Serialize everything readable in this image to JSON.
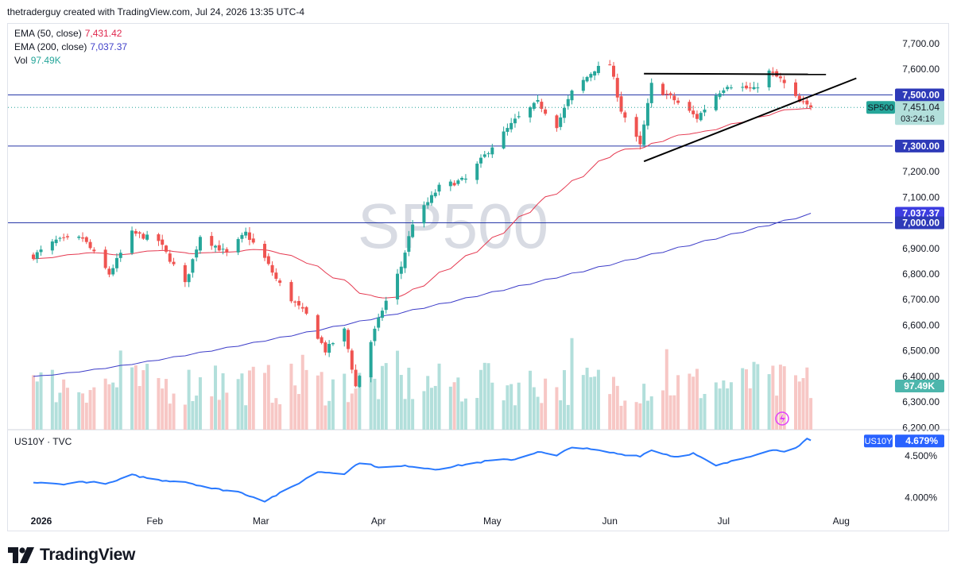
{
  "header": {
    "attribution": "thetraderguy created with TradingView.com, Jul 24, 2026 13:35 UTC-4"
  },
  "legend": [
    {
      "label": "EMA (50, close)",
      "value": "7,431.42",
      "color": "#d81b60"
    },
    {
      "label": "EMA (200, close)",
      "value": "7,037.37",
      "color": "#3f3fc9"
    },
    {
      "label": "Vol",
      "value": "97.49K",
      "color": "#26a69a"
    }
  ],
  "watermark": "SP500",
  "pane2_label": "US10Y · TVC",
  "brand": "TradingView",
  "colors": {
    "up": "#26a69a",
    "down": "#ef5350",
    "ema50": "#e53950",
    "ema200": "#3c3cc8",
    "hline": "#2738a8",
    "us10y": "#2979ff"
  },
  "chart_data": [
    {
      "type": "candlestick",
      "symbol": "SP500",
      "period": "daily",
      "ylim": [
        6170,
        7760
      ],
      "yticks": [
        "7,700.00",
        "7,600.00",
        "7,500.00",
        "7,400.00",
        "7,300.00",
        "7,200.00",
        "7,100.00",
        "7,000.00",
        "6,900.00",
        "6,800.00",
        "6,700.00",
        "6,600.00",
        "6,500.00",
        "6,400.00",
        "6,300.00",
        "6,200.00"
      ],
      "xticks": [
        "2026",
        "Feb",
        "Mar",
        "Apr",
        "May",
        "Jun",
        "Jul",
        "Aug"
      ],
      "anchors": [
        [
          "2025-12-31",
          6870
        ],
        [
          "2026-01-06",
          6930
        ],
        [
          "2026-01-13",
          6940
        ],
        [
          "2026-01-20",
          6800
        ],
        [
          "2026-01-26",
          6960
        ],
        [
          "2026-02-02",
          6930
        ],
        [
          "2026-02-09",
          6760
        ],
        [
          "2026-02-13",
          6950
        ],
        [
          "2026-02-20",
          6880
        ],
        [
          "2026-02-25",
          6960
        ],
        [
          "2026-03-02",
          6860
        ],
        [
          "2026-03-05",
          6780
        ],
        [
          "2026-03-09",
          6700
        ],
        [
          "2026-03-13",
          6640
        ],
        [
          "2026-03-18",
          6500
        ],
        [
          "2026-03-23",
          6580
        ],
        [
          "2026-03-26",
          6360
        ],
        [
          "2026-03-31",
          6580
        ],
        [
          "2026-04-02",
          6660
        ],
        [
          "2026-04-07",
          6830
        ],
        [
          "2026-04-10",
          7000
        ],
        [
          "2026-04-17",
          7140
        ],
        [
          "2026-04-24",
          7170
        ],
        [
          "2026-05-01",
          7300
        ],
        [
          "2026-05-07",
          7400
        ],
        [
          "2026-05-13",
          7470
        ],
        [
          "2026-05-18",
          7380
        ],
        [
          "2026-05-22",
          7510
        ],
        [
          "2026-05-28",
          7600
        ],
        [
          "2026-06-01",
          7620
        ],
        [
          "2026-06-04",
          7440
        ],
        [
          "2026-06-09",
          7300
        ],
        [
          "2026-06-12",
          7540
        ],
        [
          "2026-06-18",
          7480
        ],
        [
          "2026-06-24",
          7410
        ],
        [
          "2026-06-29",
          7500
        ],
        [
          "2026-07-02",
          7540
        ],
        [
          "2026-07-09",
          7520
        ],
        [
          "2026-07-13",
          7590
        ],
        [
          "2026-07-16",
          7560
        ],
        [
          "2026-07-21",
          7470
        ],
        [
          "2026-07-24",
          7451
        ]
      ],
      "last_price": "7,451.04",
      "countdown": "03:24:16",
      "price_tags": [
        {
          "text": "7,500.00",
          "price": 7500,
          "color": "#2e3ab8"
        },
        {
          "text": "7,431.42",
          "price": 7431.42,
          "color": "#e91e63"
        },
        {
          "text": "7,300.00",
          "price": 7300,
          "color": "#2e3ab8"
        },
        {
          "text": "7,037.37",
          "price": 7037.37,
          "color": "#3d3de0"
        },
        {
          "text": "7,000.00",
          "price": 7000,
          "color": "#2e3ab8"
        }
      ],
      "horizontal_lines": [
        7500,
        7300,
        7000
      ],
      "trendlines": [
        {
          "from": [
            "2026-06-10",
            7583
          ],
          "to": [
            "2026-07-28",
            7580
          ]
        },
        {
          "from": [
            "2026-06-10",
            7240
          ],
          "to": [
            "2026-08-05",
            7565
          ]
        }
      ],
      "volume_badge": "97.49K"
    },
    {
      "type": "line",
      "symbol": "US10Y",
      "ylim": [
        3.875,
        4.775
      ],
      "yticks": [
        "4.500%",
        "4.000%"
      ],
      "last_value": "4.679%",
      "anchors": [
        [
          "2025-12-31",
          4.18
        ],
        [
          "2026-01-07",
          4.16
        ],
        [
          "2026-01-13",
          4.19
        ],
        [
          "2026-01-20",
          4.17
        ],
        [
          "2026-01-26",
          4.27
        ],
        [
          "2026-02-02",
          4.21
        ],
        [
          "2026-02-09",
          4.19
        ],
        [
          "2026-02-16",
          4.11
        ],
        [
          "2026-02-23",
          4.07
        ],
        [
          "2026-03-02",
          3.96
        ],
        [
          "2026-03-09",
          4.12
        ],
        [
          "2026-03-16",
          4.31
        ],
        [
          "2026-03-23",
          4.29
        ],
        [
          "2026-03-27",
          4.42
        ],
        [
          "2026-04-02",
          4.36
        ],
        [
          "2026-04-09",
          4.38
        ],
        [
          "2026-04-16",
          4.34
        ],
        [
          "2026-04-23",
          4.39
        ],
        [
          "2026-04-30",
          4.44
        ],
        [
          "2026-05-07",
          4.46
        ],
        [
          "2026-05-13",
          4.55
        ],
        [
          "2026-05-18",
          4.5
        ],
        [
          "2026-05-22",
          4.61
        ],
        [
          "2026-05-28",
          4.57
        ],
        [
          "2026-06-04",
          4.52
        ],
        [
          "2026-06-09",
          4.5
        ],
        [
          "2026-06-12",
          4.57
        ],
        [
          "2026-06-18",
          4.49
        ],
        [
          "2026-06-23",
          4.53
        ],
        [
          "2026-06-29",
          4.38
        ],
        [
          "2026-07-06",
          4.47
        ],
        [
          "2026-07-13",
          4.57
        ],
        [
          "2026-07-17",
          4.56
        ],
        [
          "2026-07-21",
          4.62
        ],
        [
          "2026-07-23",
          4.7
        ],
        [
          "2026-07-24",
          4.68
        ]
      ]
    }
  ]
}
